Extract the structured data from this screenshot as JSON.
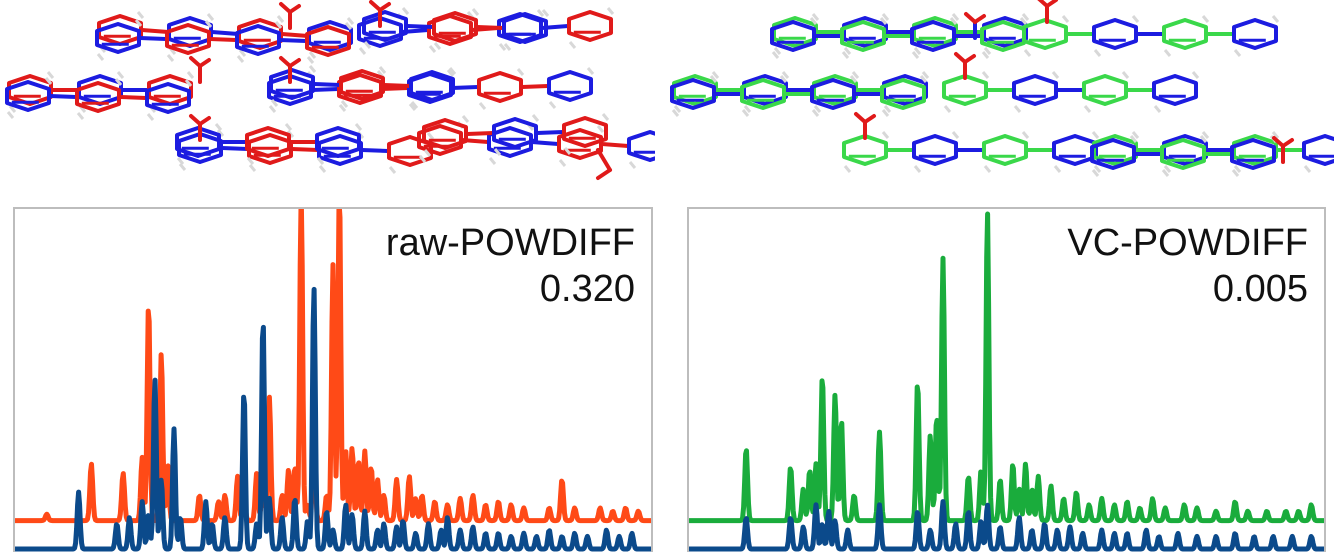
{
  "colors": {
    "experimental": "#0b4a8b",
    "raw": "#ff4a17",
    "vc": "#1aac3c",
    "frame": "#bdbdbd",
    "mol_blue": "#1c1ce0",
    "mol_red": "#e01a1a",
    "mol_green": "#3ad84a"
  },
  "structures": {
    "left": {
      "name": "raw-overlay",
      "colors": [
        "mol_blue",
        "mol_red"
      ]
    },
    "right": {
      "name": "vc-overlay",
      "colors": [
        "mol_blue",
        "mol_green"
      ]
    }
  },
  "chart_data": [
    {
      "type": "line",
      "label": "raw-POWDIFF",
      "value": "0.320",
      "xlim": [
        0,
        100
      ],
      "ylim": [
        0,
        100
      ],
      "grid": false,
      "series": [
        {
          "color": "raw",
          "baseline": 9,
          "peaks": [
            [
              5,
              2
            ],
            [
              12,
              18
            ],
            [
              17,
              15
            ],
            [
              20,
              20
            ],
            [
              21,
              69
            ],
            [
              23,
              53
            ],
            [
              24,
              18
            ],
            [
              29,
              8
            ],
            [
              32,
              6
            ],
            [
              33,
              8
            ],
            [
              35,
              14
            ],
            [
              36,
              7
            ],
            [
              38,
              15
            ],
            [
              39,
              16
            ],
            [
              40,
              39
            ],
            [
              42,
              8
            ],
            [
              43,
              16
            ],
            [
              44,
              17
            ],
            [
              45,
              15
            ],
            [
              46,
              5
            ],
            [
              47,
              24
            ],
            [
              49,
              8
            ],
            [
              50,
              81
            ],
            [
              51,
              15
            ],
            [
              52,
              22
            ],
            [
              53,
              23
            ],
            [
              54,
              19
            ],
            [
              55,
              22
            ],
            [
              56,
              17
            ],
            [
              57,
              13
            ],
            [
              58,
              8
            ],
            [
              60,
              13
            ],
            [
              62,
              14
            ],
            [
              63,
              7
            ],
            [
              64,
              8
            ],
            [
              66,
              6
            ],
            [
              68,
              5
            ],
            [
              70,
              7
            ],
            [
              72,
              8
            ],
            [
              74,
              5
            ],
            [
              76,
              6
            ],
            [
              78,
              5
            ],
            [
              80,
              4
            ],
            [
              84,
              4
            ],
            [
              86,
              13
            ],
            [
              88,
              4
            ],
            [
              92,
              4
            ],
            [
              94,
              3
            ],
            [
              96,
              4
            ],
            [
              98,
              3
            ]
          ],
          "peaks2": [
            [
              45,
              89
            ],
            [
              51,
              90
            ]
          ]
        },
        {
          "color": "experimental",
          "baseline": 0,
          "peaks": [
            [
              10,
              18
            ],
            [
              16,
              8
            ],
            [
              18,
              10
            ],
            [
              20,
              15
            ],
            [
              21,
              11
            ],
            [
              22,
              54
            ],
            [
              23,
              22
            ],
            [
              25,
              38
            ],
            [
              26,
              10
            ],
            [
              30,
              15
            ],
            [
              31,
              8
            ],
            [
              33,
              10
            ],
            [
              36,
              50
            ],
            [
              38,
              8
            ],
            [
              39,
              73
            ],
            [
              40,
              16
            ],
            [
              42,
              10
            ],
            [
              44,
              16
            ],
            [
              46,
              9
            ],
            [
              47,
              83
            ],
            [
              49,
              12
            ],
            [
              50,
              6
            ],
            [
              52,
              14
            ],
            [
              53,
              11
            ],
            [
              55,
              12
            ],
            [
              57,
              6
            ],
            [
              58,
              8
            ],
            [
              60,
              7
            ],
            [
              61,
              9
            ],
            [
              63,
              5
            ],
            [
              65,
              8
            ],
            [
              67,
              6
            ],
            [
              68,
              10
            ],
            [
              70,
              6
            ],
            [
              72,
              7
            ],
            [
              74,
              5
            ],
            [
              76,
              5
            ],
            [
              78,
              4
            ],
            [
              80,
              5
            ],
            [
              82,
              4
            ],
            [
              84,
              6
            ],
            [
              86,
              4
            ],
            [
              88,
              5
            ],
            [
              90,
              4
            ],
            [
              93,
              6
            ],
            [
              95,
              4
            ],
            [
              97,
              5
            ]
          ]
        }
      ]
    },
    {
      "type": "line",
      "label": "VC-POWDIFF",
      "value": "0.005",
      "xlim": [
        0,
        100
      ],
      "ylim": [
        0,
        100
      ],
      "grid": false,
      "series": [
        {
          "color": "vc",
          "baseline": 9,
          "peaks": [
            [
              9,
              23
            ],
            [
              16,
              17
            ],
            [
              18,
              10
            ],
            [
              19,
              16
            ],
            [
              20,
              18
            ],
            [
              21,
              46
            ],
            [
              23,
              40
            ],
            [
              24,
              32
            ],
            [
              26,
              8
            ],
            [
              30,
              28
            ],
            [
              36,
              44
            ],
            [
              38,
              27
            ],
            [
              39,
              33
            ],
            [
              40,
              83
            ],
            [
              44,
              14
            ],
            [
              46,
              16
            ],
            [
              47,
              98
            ],
            [
              49,
              13
            ],
            [
              51,
              18
            ],
            [
              52,
              10
            ],
            [
              53,
              18
            ],
            [
              54,
              10
            ],
            [
              55,
              14
            ],
            [
              57,
              11
            ],
            [
              59,
              7
            ],
            [
              61,
              9
            ],
            [
              63,
              5
            ],
            [
              65,
              7
            ],
            [
              67,
              5
            ],
            [
              69,
              6
            ],
            [
              71,
              4
            ],
            [
              73,
              7
            ],
            [
              75,
              4
            ],
            [
              78,
              5
            ],
            [
              80,
              4
            ],
            [
              83,
              3
            ],
            [
              86,
              6
            ],
            [
              88,
              3
            ],
            [
              91,
              3
            ],
            [
              94,
              3
            ],
            [
              96,
              3
            ],
            [
              98,
              5
            ]
          ]
        },
        {
          "color": "experimental",
          "baseline": 0,
          "peaks": [
            [
              9,
              10
            ],
            [
              16,
              10
            ],
            [
              18,
              7
            ],
            [
              20,
              14
            ],
            [
              21,
              8
            ],
            [
              22,
              12
            ],
            [
              23,
              9
            ],
            [
              25,
              6
            ],
            [
              30,
              14
            ],
            [
              36,
              12
            ],
            [
              38,
              6
            ],
            [
              40,
              15
            ],
            [
              42,
              8
            ],
            [
              44,
              12
            ],
            [
              46,
              9
            ],
            [
              47,
              14
            ],
            [
              49,
              7
            ],
            [
              52,
              10
            ],
            [
              54,
              6
            ],
            [
              56,
              8
            ],
            [
              58,
              6
            ],
            [
              60,
              7
            ],
            [
              62,
              5
            ],
            [
              65,
              6
            ],
            [
              67,
              5
            ],
            [
              69,
              5
            ],
            [
              72,
              6
            ],
            [
              74,
              4
            ],
            [
              77,
              5
            ],
            [
              80,
              4
            ],
            [
              83,
              4
            ],
            [
              86,
              5
            ],
            [
              89,
              4
            ],
            [
              92,
              4
            ],
            [
              95,
              4
            ],
            [
              98,
              4
            ]
          ]
        }
      ]
    }
  ]
}
